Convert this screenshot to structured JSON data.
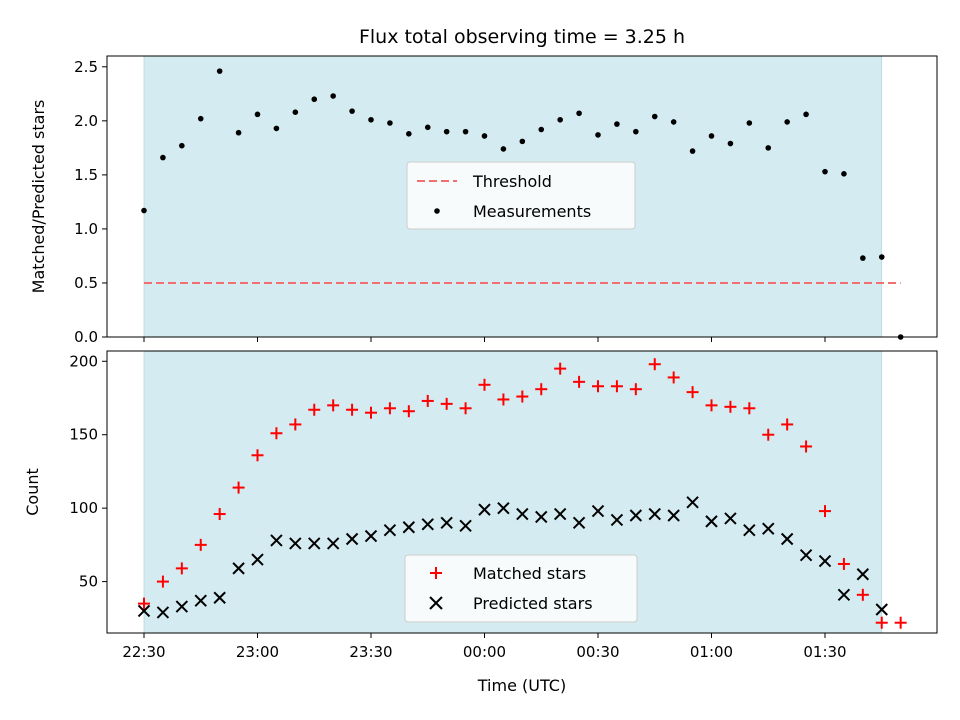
{
  "chart_data": {
    "title": "Flux total observing time = 3.25 h",
    "xlabel": "Time (UTC)",
    "x_ticks": [
      "22:30",
      "23:00",
      "23:30",
      "00:00",
      "00:30",
      "01:00",
      "01:30"
    ],
    "observing_window": [
      "22:30",
      "01:45"
    ],
    "colors": {
      "window": "#d4ebf1",
      "threshold": "#f07070",
      "matched": "#ff0000",
      "predicted": "#000000",
      "measurement": "#000000"
    },
    "time": [
      "22:30",
      "22:35",
      "22:40",
      "22:45",
      "22:50",
      "22:55",
      "23:00",
      "23:05",
      "23:10",
      "23:15",
      "23:20",
      "23:25",
      "23:30",
      "23:35",
      "23:40",
      "23:45",
      "23:50",
      "23:55",
      "00:00",
      "00:05",
      "00:10",
      "00:15",
      "00:20",
      "00:25",
      "00:30",
      "00:35",
      "00:40",
      "00:45",
      "00:50",
      "00:55",
      "01:00",
      "01:05",
      "01:10",
      "01:15",
      "01:20",
      "01:25",
      "01:30",
      "01:35",
      "01:40",
      "01:45",
      "01:50"
    ],
    "charts": [
      {
        "type": "scatter",
        "ylabel": "Matched/Predicted stars",
        "ylim": [
          0,
          2.6
        ],
        "yticks": [
          "0.0",
          "0.5",
          "1.0",
          "1.5",
          "2.0",
          "2.5"
        ],
        "threshold": {
          "name": "Threshold",
          "value": 0.5,
          "x_range": [
            "22:30",
            "01:50"
          ]
        },
        "legend": {
          "placement": "center"
        },
        "series": [
          {
            "name": "Measurements",
            "values": [
              1.17,
              1.66,
              1.77,
              2.02,
              2.46,
              1.89,
              2.06,
              1.93,
              2.08,
              2.2,
              2.23,
              2.09,
              2.01,
              1.98,
              1.88,
              1.94,
              1.9,
              1.9,
              1.86,
              1.74,
              1.81,
              1.92,
              2.01,
              2.07,
              1.87,
              1.97,
              1.9,
              2.04,
              1.99,
              1.72,
              1.86,
              1.79,
              1.98,
              1.75,
              1.99,
              2.06,
              1.53,
              1.51,
              0.73,
              0.74,
              0.0
            ]
          }
        ]
      },
      {
        "type": "scatter",
        "ylabel": "Count",
        "ylim": [
          15,
          207
        ],
        "yticks": [
          "50",
          "100",
          "150",
          "200"
        ],
        "legend": {
          "placement": "lower center"
        },
        "series": [
          {
            "name": "Matched stars",
            "marker": "plus",
            "values": [
              35,
              50,
              59,
              75,
              96,
              114,
              136,
              151,
              157,
              167,
              170,
              167,
              165,
              168,
              166,
              173,
              171,
              168,
              184,
              174,
              176,
              181,
              195,
              186,
              183,
              183,
              181,
              198,
              189,
              179,
              170,
              169,
              168,
              150,
              157,
              142,
              98,
              62,
              41,
              22,
              22
            ]
          },
          {
            "name": "Predicted stars",
            "marker": "x",
            "values": [
              30,
              29,
              33,
              37,
              39,
              59,
              65,
              78,
              76,
              76,
              76,
              79,
              81,
              85,
              87,
              89,
              90,
              88,
              99,
              100,
              96,
              94,
              96,
              90,
              98,
              92,
              95,
              96,
              95,
              104,
              91,
              93,
              85,
              86,
              79,
              68,
              64,
              41,
              55,
              31,
              null
            ]
          }
        ]
      }
    ]
  }
}
